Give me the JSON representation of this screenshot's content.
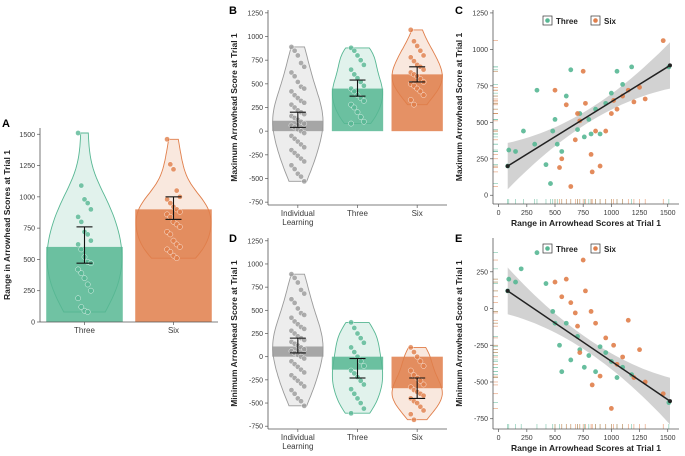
{
  "colors": {
    "individual": "#9a9a9a",
    "three": "#57b793",
    "six": "#e07e4a",
    "fit": "#222222",
    "band": "#9c9c9c"
  },
  "chart_data": [
    {
      "id": "A",
      "type": "bar",
      "panel_label": "A",
      "title": "",
      "xlabel": "",
      "ylabel": "Range in Arrowhead Scores at Trial 1",
      "categories": [
        "Three",
        "Six"
      ],
      "values": [
        600,
        900
      ],
      "error_low": [
        470,
        820
      ],
      "error_high": [
        760,
        1000
      ],
      "ylim": [
        0,
        1550
      ],
      "yticks": [
        0,
        250,
        500,
        750,
        1000,
        1250,
        1500
      ],
      "points": [
        [
          1510,
          1090,
          980,
          950,
          900,
          840,
          800,
          720,
          700,
          650,
          620,
          580,
          520,
          480,
          470,
          420,
          390,
          350,
          300,
          250,
          190,
          120,
          90,
          80
        ],
        [
          1460,
          1260,
          1220,
          1050,
          1000,
          980,
          950,
          920,
          900,
          880,
          860,
          840,
          800,
          780,
          760,
          720,
          700,
          650,
          620,
          600,
          580,
          560,
          530,
          510
        ]
      ]
    },
    {
      "id": "B",
      "type": "bar",
      "panel_label": "B",
      "title": "",
      "xlabel": "",
      "ylabel": "Maximum Arrowhead Score at Trial 1",
      "categories": [
        "Individual Learning",
        "Three",
        "Six"
      ],
      "values": [
        110,
        450,
        600
      ],
      "error_low": [
        40,
        370,
        520
      ],
      "error_high": [
        200,
        540,
        680
      ],
      "ylim": [
        -780,
        1280
      ],
      "yticks": [
        -750,
        -500,
        -250,
        0,
        250,
        500,
        750,
        1000,
        1250
      ],
      "points": [
        [
          890,
          850,
          800,
          720,
          680,
          620,
          580,
          520,
          470,
          450,
          420,
          380,
          350,
          320,
          300,
          280,
          250,
          220,
          200,
          180,
          160,
          140,
          120,
          100,
          80,
          60,
          40,
          20,
          0,
          -20,
          -50,
          -80,
          -110,
          -140,
          -170,
          -200,
          -230,
          -260,
          -290,
          -320,
          -360,
          -400,
          -450,
          -480,
          -530
        ],
        [
          880,
          850,
          800,
          750,
          700,
          650,
          600,
          560,
          520,
          480,
          450,
          420,
          380,
          350,
          320,
          280,
          250,
          200,
          150,
          100,
          80
        ],
        [
          1070,
          950,
          900,
          850,
          800,
          780,
          740,
          700,
          680,
          650,
          620,
          600,
          580,
          550,
          520,
          500,
          480,
          450,
          420,
          380,
          330,
          280
        ]
      ]
    },
    {
      "id": "C",
      "type": "scatter",
      "panel_label": "C",
      "title": "",
      "xlabel": "Range in Arrowhead Scores at Trial 1",
      "ylabel": "Maximum Arrowhead Score at Trial 1",
      "xlim": [
        -50,
        1600
      ],
      "ylim": [
        -60,
        1270
      ],
      "xticks": [
        0,
        250,
        500,
        750,
        1000,
        1250,
        1500
      ],
      "yticks": [
        0,
        250,
        500,
        750,
        1000,
        1250
      ],
      "legend": [
        "Three",
        "Six"
      ],
      "fit": {
        "x": [
          80,
          1520
        ],
        "y": [
          200,
          890
        ]
      },
      "series": [
        {
          "name": "Three",
          "points": [
            [
              80,
              200
            ],
            [
              90,
              310
            ],
            [
              150,
              300
            ],
            [
              220,
              440
            ],
            [
              320,
              350
            ],
            [
              340,
              720
            ],
            [
              420,
              210
            ],
            [
              460,
              80
            ],
            [
              480,
              440
            ],
            [
              500,
              520
            ],
            [
              520,
              350
            ],
            [
              560,
              300
            ],
            [
              600,
              680
            ],
            [
              640,
              860
            ],
            [
              700,
              450
            ],
            [
              720,
              560
            ],
            [
              760,
              400
            ],
            [
              800,
              520
            ],
            [
              820,
              420
            ],
            [
              860,
              590
            ],
            [
              900,
              420
            ],
            [
              950,
              630
            ],
            [
              1000,
              700
            ],
            [
              1050,
              850
            ],
            [
              1100,
              760
            ],
            [
              1180,
              880
            ],
            [
              1510,
              880
            ]
          ]
        },
        {
          "name": "Six",
          "points": [
            [
              500,
              720
            ],
            [
              540,
              190
            ],
            [
              560,
              250
            ],
            [
              600,
              620
            ],
            [
              640,
              60
            ],
            [
              680,
              380
            ],
            [
              700,
              560
            ],
            [
              720,
              510
            ],
            [
              750,
              850
            ],
            [
              770,
              630
            ],
            [
              820,
              280
            ],
            [
              830,
              160
            ],
            [
              860,
              440
            ],
            [
              900,
              200
            ],
            [
              950,
              440
            ],
            [
              1000,
              560
            ],
            [
              1020,
              650
            ],
            [
              1050,
              590
            ],
            [
              1100,
              680
            ],
            [
              1150,
              720
            ],
            [
              1200,
              640
            ],
            [
              1250,
              740
            ],
            [
              1300,
              660
            ],
            [
              1460,
              1060
            ]
          ]
        }
      ]
    },
    {
      "id": "D",
      "type": "bar",
      "panel_label": "D",
      "title": "",
      "xlabel": "",
      "ylabel": "Minimum Arrowhead Score at Trial 1",
      "categories": [
        "Individual Learning",
        "Three",
        "Six"
      ],
      "values": [
        110,
        -140,
        -340
      ],
      "error_low": [
        40,
        -230,
        -450
      ],
      "error_high": [
        200,
        -20,
        -230
      ],
      "ylim": [
        -780,
        1280
      ],
      "yticks": [
        -750,
        -500,
        -250,
        0,
        250,
        500,
        750,
        1000,
        1250
      ],
      "points": [
        [
          890,
          850,
          800,
          720,
          680,
          620,
          580,
          520,
          470,
          450,
          420,
          380,
          350,
          320,
          300,
          280,
          250,
          220,
          200,
          180,
          160,
          140,
          120,
          100,
          80,
          60,
          40,
          20,
          0,
          -20,
          -50,
          -80,
          -110,
          -140,
          -170,
          -200,
          -230,
          -260,
          -290,
          -320,
          -360,
          -400,
          -450,
          -480,
          -530
        ],
        [
          370,
          310,
          250,
          200,
          150,
          100,
          50,
          0,
          -50,
          -100,
          -150,
          -180,
          -220,
          -260,
          -300,
          -350,
          -400,
          -450,
          -500,
          -560,
          -610
        ],
        [
          100,
          50,
          0,
          -50,
          -100,
          -150,
          -200,
          -230,
          -260,
          -300,
          -330,
          -360,
          -380,
          -400,
          -420,
          -450,
          -480,
          -500,
          -540,
          -580,
          -620,
          -680
        ]
      ]
    },
    {
      "id": "E",
      "type": "scatter",
      "panel_label": "E",
      "title": "",
      "xlabel": "Range in Arrowhead Scores at Trial 1",
      "ylabel": "Minimum Arrowhead Score at Trial 1",
      "xlim": [
        -50,
        1600
      ],
      "ylim": [
        -820,
        480
      ],
      "xticks": [
        0,
        250,
        500,
        750,
        1000,
        1250,
        1500
      ],
      "yticks": [
        -750,
        -500,
        -250,
        0,
        250
      ],
      "legend": [
        "Three",
        "Six"
      ],
      "fit": {
        "x": [
          80,
          1520
        ],
        "y": [
          120,
          -630
        ]
      },
      "series": [
        {
          "name": "Three",
          "points": [
            [
              80,
              120
            ],
            [
              90,
              200
            ],
            [
              150,
              180
            ],
            [
              200,
              270
            ],
            [
              340,
              380
            ],
            [
              420,
              170
            ],
            [
              480,
              -20
            ],
            [
              500,
              -100
            ],
            [
              540,
              -250
            ],
            [
              560,
              -430
            ],
            [
              600,
              -100
            ],
            [
              640,
              -350
            ],
            [
              700,
              -190
            ],
            [
              720,
              -280
            ],
            [
              760,
              -400
            ],
            [
              800,
              -320
            ],
            [
              860,
              -430
            ],
            [
              900,
              -260
            ],
            [
              950,
              -300
            ],
            [
              1000,
              -360
            ],
            [
              1050,
              -470
            ],
            [
              1100,
              -400
            ],
            [
              1180,
              -450
            ],
            [
              1510,
              -640
            ]
          ]
        },
        {
          "name": "Six",
          "points": [
            [
              500,
              180
            ],
            [
              560,
              80
            ],
            [
              600,
              200
            ],
            [
              640,
              40
            ],
            [
              680,
              -30
            ],
            [
              700,
              -120
            ],
            [
              720,
              -300
            ],
            [
              750,
              330
            ],
            [
              770,
              120
            ],
            [
              820,
              -20
            ],
            [
              830,
              -520
            ],
            [
              860,
              -100
            ],
            [
              900,
              -460
            ],
            [
              950,
              -200
            ],
            [
              1000,
              -680
            ],
            [
              1020,
              -250
            ],
            [
              1050,
              -380
            ],
            [
              1100,
              -330
            ],
            [
              1150,
              -80
            ],
            [
              1200,
              -470
            ],
            [
              1250,
              -280
            ],
            [
              1300,
              -500
            ],
            [
              1460,
              -580
            ]
          ]
        }
      ]
    }
  ]
}
